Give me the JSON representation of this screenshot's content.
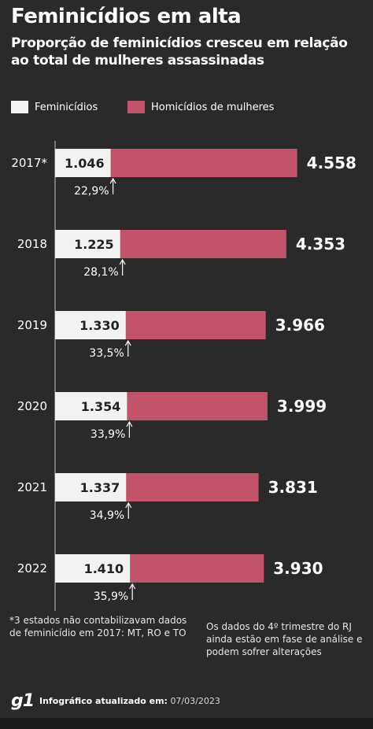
{
  "header": {
    "title": "Feminicídios em alta",
    "subtitle": "Proporção de feminicídios cresceu em relação ao total de mulheres assassinadas"
  },
  "legend": {
    "feminicidios": "Feminicídios",
    "homicidios": "Homicídios de mulheres"
  },
  "colors": {
    "background": "#2a2a2a",
    "feminicidios": "#f2f2f2",
    "homicidios": "#c2536a",
    "text": "#ffffff"
  },
  "chart_data": {
    "type": "bar",
    "orientation": "horizontal",
    "stacked": "nested",
    "categories": [
      "2017*",
      "2018",
      "2019",
      "2020",
      "2021",
      "2022"
    ],
    "series": [
      {
        "name": "Feminicídios",
        "values": [
          1046,
          1225,
          1330,
          1354,
          1337,
          1410
        ],
        "labels": [
          "1.046",
          "1.225",
          "1.330",
          "1.354",
          "1.337",
          "1.410"
        ]
      },
      {
        "name": "Homicídios de mulheres",
        "values": [
          4558,
          4353,
          3966,
          3999,
          3831,
          3930
        ],
        "labels": [
          "4.558",
          "4.353",
          "3.966",
          "3.999",
          "3.831",
          "3.930"
        ]
      }
    ],
    "percent_labels": [
      "22,9%",
      "28,1%",
      "33,5%",
      "33,9%",
      "34,9%",
      "35,9%"
    ],
    "title": "Feminicídios em alta",
    "legend_position": "top-left",
    "grid": false
  },
  "notes": {
    "left": "*3 estados não contabilizavam dados de feminicídio em 2017: MT, RO e TO",
    "right": "Os dados do 4º trimestre do RJ ainda estão em fase de análise e podem sofrer alterações"
  },
  "footer": {
    "logo": "g1",
    "label": "Infográfico atualizado em:",
    "date": "07/03/2023"
  }
}
